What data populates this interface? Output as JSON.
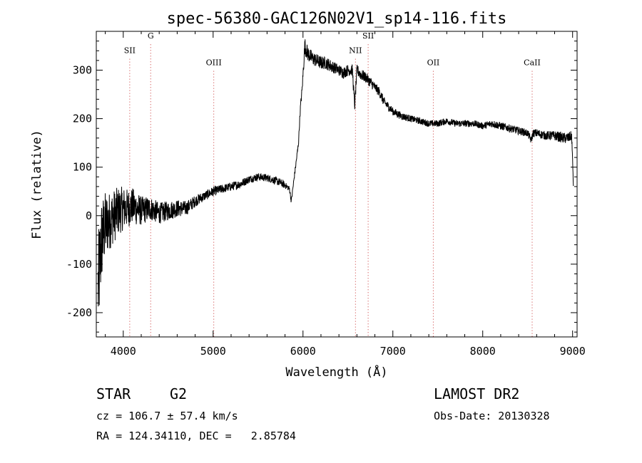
{
  "chart_data": {
    "type": "line",
    "title": "spec-56380-GAC126N02V1_sp14-116.fits",
    "xlabel": "Wavelength (Å)",
    "ylabel": "Flux (relative)",
    "xlim": [
      3700,
      9050
    ],
    "ylim": [
      -250,
      380
    ],
    "xticks": [
      4000,
      5000,
      6000,
      7000,
      8000,
      9000
    ],
    "yticks": [
      -200,
      -100,
      0,
      100,
      200,
      300
    ],
    "grid": false,
    "series": [
      {
        "x": [
          3720,
          3760,
          3800,
          3850,
          3900,
          3950,
          4000,
          4050,
          4100,
          4150,
          4200,
          4300,
          4400,
          4500,
          4600,
          4700,
          4800,
          4900,
          5000,
          5100,
          5200,
          5300,
          5400,
          5500,
          5600,
          5700,
          5780,
          5820,
          5850,
          5870,
          5890,
          5910,
          5930,
          5950,
          5970,
          5990,
          6000,
          6020,
          6050,
          6100,
          6150,
          6200,
          6250,
          6300,
          6350,
          6400,
          6450,
          6500,
          6550,
          6575,
          6600,
          6650,
          6700,
          6750,
          6800,
          6850,
          6900,
          6950,
          7000,
          7050,
          7100,
          7200,
          7300,
          7400,
          7500,
          7600,
          7700,
          7800,
          7900,
          8000,
          8100,
          8200,
          8300,
          8400,
          8500,
          8540,
          8560,
          8600,
          8700,
          8800,
          8900,
          8950,
          8990,
          9000,
          9010
        ],
        "y": [
          -150,
          -50,
          -20,
          -10,
          0,
          10,
          15,
          15,
          20,
          15,
          10,
          15,
          5,
          10,
          15,
          15,
          30,
          40,
          50,
          55,
          60,
          65,
          75,
          80,
          78,
          72,
          65,
          60,
          55,
          30,
          60,
          90,
          120,
          150,
          220,
          260,
          290,
          350,
          335,
          325,
          320,
          315,
          315,
          310,
          305,
          300,
          295,
          300,
          300,
          225,
          300,
          290,
          285,
          275,
          265,
          255,
          235,
          225,
          215,
          210,
          205,
          200,
          195,
          190,
          190,
          195,
          190,
          190,
          190,
          185,
          190,
          185,
          180,
          175,
          170,
          155,
          170,
          170,
          165,
          165,
          160,
          160,
          165,
          110,
          60
        ],
        "noise_amplitude": [
          110,
          90,
          70,
          60,
          55,
          50,
          45,
          40,
          38,
          35,
          30,
          25,
          22,
          20,
          18,
          15,
          12,
          10,
          10,
          9,
          9,
          9,
          8,
          8,
          8,
          8,
          8,
          6,
          6,
          6,
          6,
          6,
          6,
          6,
          8,
          10,
          12,
          18,
          16,
          15,
          14,
          14,
          13,
          13,
          12,
          12,
          12,
          12,
          12,
          12,
          12,
          12,
          11,
          11,
          10,
          10,
          10,
          9,
          8,
          8,
          8,
          7,
          7,
          7,
          7,
          7,
          7,
          7,
          7,
          7,
          8,
          8,
          8,
          8,
          8,
          8,
          8,
          9,
          9,
          10,
          11,
          11,
          10,
          10,
          10
        ]
      }
    ],
    "annotations": [
      {
        "label": "SII",
        "x": 4072,
        "label_y": 335
      },
      {
        "label": "G",
        "x": 4305,
        "label_y": 365
      },
      {
        "label": "OIII",
        "x": 5007,
        "label_y": 310
      },
      {
        "label": "NII",
        "x": 6584,
        "label_y": 335
      },
      {
        "label": "SII",
        "x": 6725,
        "label_y": 365
      },
      {
        "label": "OII",
        "x": 7450,
        "label_y": 310
      },
      {
        "label": "CaII",
        "x": 8550,
        "label_y": 310
      }
    ],
    "colors": {
      "line": "#000000",
      "marker_lines": "#c83232",
      "axes": "#000000"
    }
  },
  "info": {
    "object_class": "STAR",
    "subclass": "G2",
    "survey": "LAMOST DR2",
    "redshift": "cz = 106.7 ± 57.4 km/s",
    "obs_date": "Obs-Date: 20130328",
    "coordinates": "RA = 124.34110, DEC =   2.85784"
  }
}
